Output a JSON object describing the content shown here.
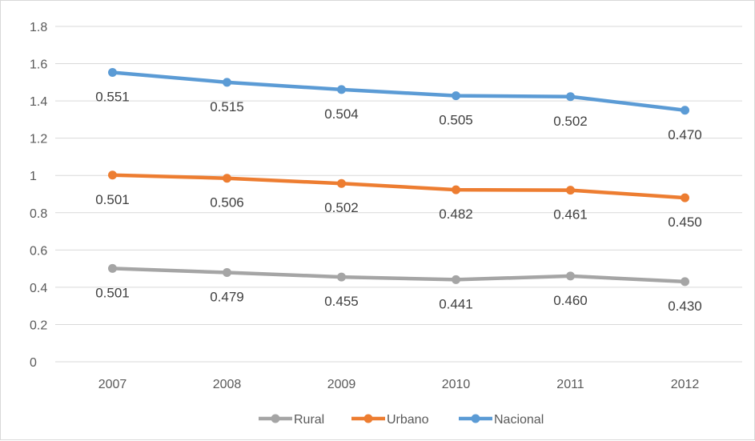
{
  "chart_data": {
    "type": "line",
    "categories": [
      "2007",
      "2008",
      "2009",
      "2010",
      "2011",
      "2012"
    ],
    "ylim": [
      0,
      1.8
    ],
    "yticks": [
      "0",
      "0.2",
      "0.4",
      "0.6",
      "0.8",
      "1",
      "1.2",
      "1.4",
      "1.6",
      "1.8"
    ],
    "grid": true,
    "legend_position": "bottom",
    "series": [
      {
        "name": "Rural",
        "color": "#a5a5a5",
        "values": [
          0.501,
          0.479,
          0.455,
          0.441,
          0.46,
          0.43
        ],
        "labels": [
          "0.501",
          "0.479",
          "0.455",
          "0.441",
          "0.460",
          "0.430"
        ]
      },
      {
        "name": "Urbano",
        "color": "#ed7d31",
        "values": [
          1.002,
          0.985,
          0.957,
          0.923,
          0.921,
          0.88
        ],
        "labels": [
          "0.501",
          "0.506",
          "0.502",
          "0.482",
          "0.461",
          "0.450"
        ]
      },
      {
        "name": "Nacional",
        "color": "#5b9bd5",
        "values": [
          1.553,
          1.5,
          1.461,
          1.428,
          1.423,
          1.35
        ],
        "labels": [
          "0.551",
          "0.515",
          "0.504",
          "0.505",
          "0.502",
          "0.470"
        ]
      }
    ]
  }
}
